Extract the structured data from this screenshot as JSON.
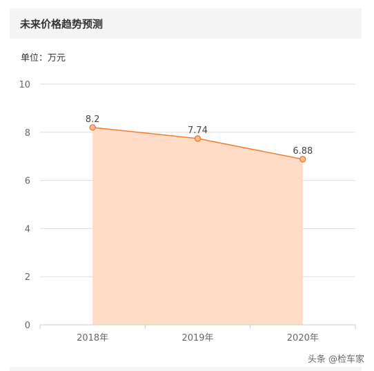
{
  "header": {
    "title": "未来价格趋势预测"
  },
  "unit_label": "单位：万元",
  "watermark": "头条 @检车家",
  "colors": {
    "line": "#f07d2f",
    "area": "#ffdcc6",
    "grid": "#dddddd",
    "axis_text": "#666666",
    "marker_fill": "#fbbf9f"
  },
  "chart_data": {
    "type": "area",
    "title": "",
    "xlabel": "",
    "ylabel": "",
    "categories": [
      "2018年",
      "2019年",
      "2020年"
    ],
    "values": [
      8.2,
      7.74,
      6.88
    ],
    "data_labels": [
      "8.2",
      "7.74",
      "6.88"
    ],
    "ylim": [
      0,
      10
    ],
    "yticks": [
      0,
      2,
      4,
      6,
      8,
      10
    ],
    "grid": true
  }
}
